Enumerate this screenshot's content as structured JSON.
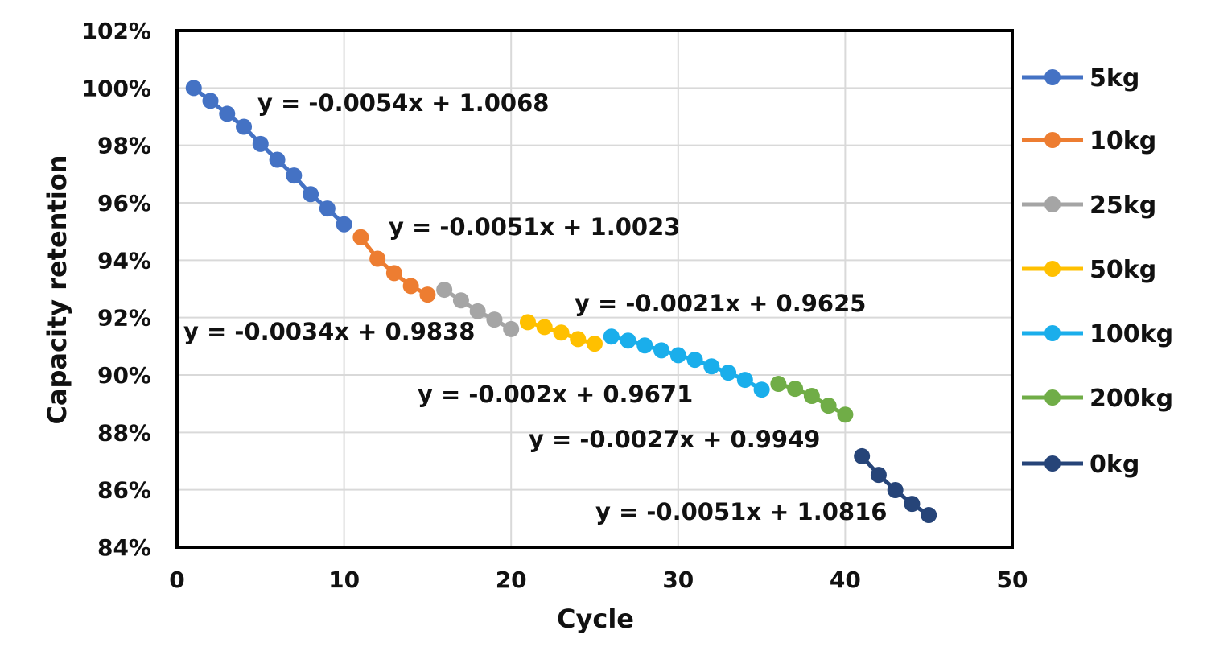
{
  "chart_data": {
    "type": "scatter",
    "title": "",
    "xlabel": "Cycle",
    "ylabel": "Capacity retention",
    "xlim": [
      0,
      50
    ],
    "ylim": [
      0.84,
      1.02
    ],
    "x_ticks": [
      "0",
      "10",
      "20",
      "30",
      "40",
      "50"
    ],
    "y_ticks": [
      "84%",
      "86%",
      "88%",
      "90%",
      "92%",
      "94%",
      "96%",
      "98%",
      "100%",
      "102%"
    ],
    "grid": true,
    "legend_position": "right",
    "series": [
      {
        "name": "5kg",
        "color": "#4472C4",
        "x": [
          1,
          2,
          3,
          4,
          5,
          6,
          7,
          8,
          9,
          10
        ],
        "y": [
          1.0,
          0.9955,
          0.991,
          0.9865,
          0.9805,
          0.975,
          0.9695,
          0.963,
          0.958,
          0.9525
        ]
      },
      {
        "name": "10kg",
        "color": "#ED7D31",
        "x": [
          11,
          12,
          13,
          14,
          15
        ],
        "y": [
          0.948,
          0.9405,
          0.9355,
          0.931,
          0.928
        ]
      },
      {
        "name": "25kg",
        "color": "#A5A5A5",
        "x": [
          16,
          17,
          18,
          19,
          20
        ],
        "y": [
          0.9297,
          0.926,
          0.9222,
          0.9193,
          0.916
        ]
      },
      {
        "name": "50kg",
        "color": "#FFC000",
        "x": [
          21,
          22,
          23,
          24,
          25
        ],
        "y": [
          0.9184,
          0.9167,
          0.9148,
          0.9125,
          0.9109
        ]
      },
      {
        "name": "100kg",
        "color": "#1AAEEB",
        "x": [
          26,
          27,
          28,
          29,
          30,
          31,
          32,
          33,
          34,
          35
        ],
        "y": [
          0.9134,
          0.912,
          0.9103,
          0.9086,
          0.9069,
          0.9053,
          0.903,
          0.9008,
          0.8983,
          0.8949
        ]
      },
      {
        "name": "200kg",
        "color": "#70AD47",
        "x": [
          36,
          37,
          38,
          39,
          40
        ],
        "y": [
          0.8969,
          0.8952,
          0.8927,
          0.8893,
          0.8862
        ]
      },
      {
        "name": "0kg",
        "color": "#264478",
        "x": [
          41,
          42,
          43,
          44,
          45
        ],
        "y": [
          0.8717,
          0.8652,
          0.8599,
          0.8551,
          0.8512
        ]
      }
    ],
    "annotations": [
      "y = -0.0054x + 1.0068",
      "y = -0.0051x + 1.0023",
      "y = -0.0034x + 0.9838",
      "y = -0.0021x + 0.9625",
      "y = -0.002x + 0.9671",
      "y = -0.0027x + 0.9949",
      "y = -0.0051x + 1.0816"
    ]
  }
}
